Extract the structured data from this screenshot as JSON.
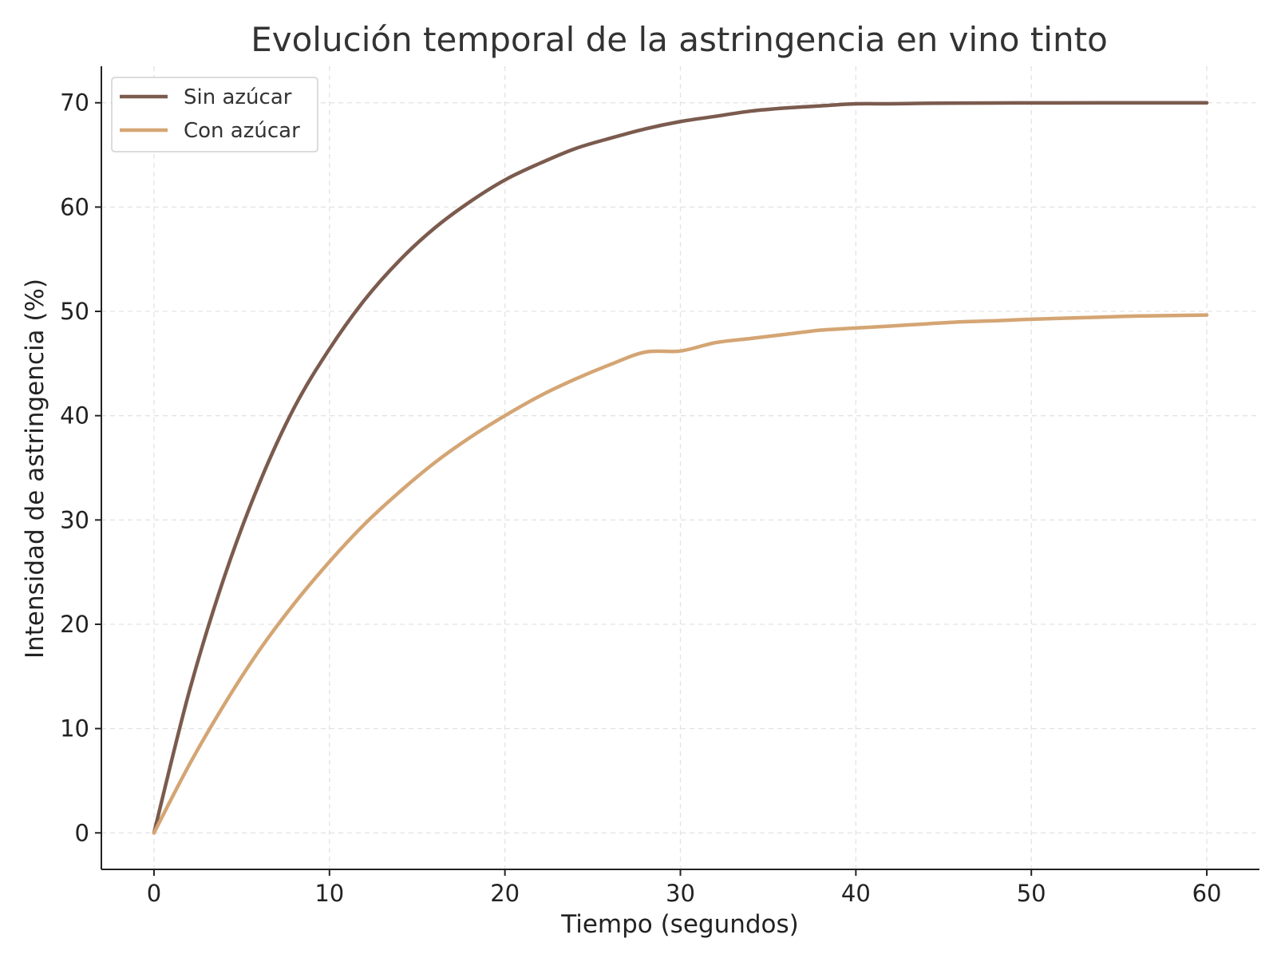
{
  "chart_data": {
    "type": "line",
    "title": "Evolución temporal de la astringencia en vino tinto",
    "xlabel": "Tiempo (segundos)",
    "ylabel": "Intensidad de astringencia (%)",
    "xlim": [
      -3,
      63
    ],
    "ylim": [
      -3.5,
      73.5
    ],
    "xticks": [
      0,
      10,
      20,
      30,
      40,
      50,
      60
    ],
    "yticks": [
      0,
      10,
      20,
      30,
      40,
      50,
      60,
      70
    ],
    "grid": true,
    "legend_position": "top-left",
    "x": [
      0,
      2,
      4,
      6,
      8,
      10,
      12,
      14,
      16,
      18,
      20,
      22,
      24,
      26,
      28,
      30,
      32,
      34,
      36,
      38,
      40,
      42,
      44,
      46,
      48,
      50,
      52,
      54,
      56,
      58,
      60
    ],
    "series": [
      {
        "name": "Sin azúcar",
        "color": "#7b5b4e",
        "values": [
          0,
          13.5,
          24.5,
          33.5,
          40.8,
          46.4,
          51.1,
          54.9,
          58.0,
          60.5,
          62.6,
          64.2,
          65.6,
          66.6,
          67.5,
          68.2,
          68.7,
          69.2,
          69.5,
          69.7,
          69.9,
          69.9,
          69.95,
          69.97,
          69.98,
          69.99,
          69.99,
          70.0,
          70.0,
          70.0,
          70.0
        ]
      },
      {
        "name": "Con azúcar",
        "color": "#d4a574",
        "values": [
          0,
          6.5,
          12.3,
          17.5,
          22.0,
          26.0,
          29.6,
          32.7,
          35.5,
          37.9,
          40.0,
          41.9,
          43.5,
          44.9,
          46.1,
          46.2,
          47.0,
          47.4,
          47.8,
          48.2,
          48.4,
          48.6,
          48.8,
          49.0,
          49.1,
          49.25,
          49.35,
          49.45,
          49.55,
          49.6,
          49.65
        ]
      }
    ]
  }
}
